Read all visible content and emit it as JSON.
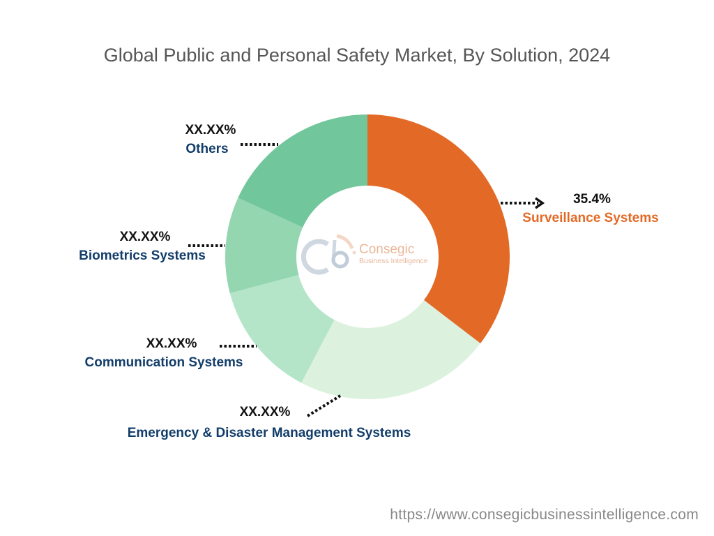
{
  "chart_data": {
    "type": "pie",
    "variant": "donut",
    "title": "Global Public and Personal Safety Market, By Solution, 2024",
    "unit": "%",
    "categories": [
      "Surveillance Systems",
      "Emergency & Disaster Management Systems",
      "Communication Systems",
      "Biometrics Systems",
      "Others"
    ],
    "values": [
      35.4,
      22.3,
      13.2,
      10.9,
      18.2
    ],
    "data_labels": [
      "35.4%",
      "XX.XX%",
      "XX.XX%",
      "XX.XX%",
      "XX.XX%"
    ],
    "colors": [
      "#E36A26",
      "#DCF2DF",
      "#B5E5C8",
      "#93D6B0",
      "#72C69B"
    ],
    "legend": "none",
    "label_placement": "outside with dotted leader lines"
  },
  "logo": {
    "main": "Consegic",
    "sub": "Business Intelligence"
  },
  "footer": {
    "url": "https://www.consegicbusinessintelligence.com"
  }
}
